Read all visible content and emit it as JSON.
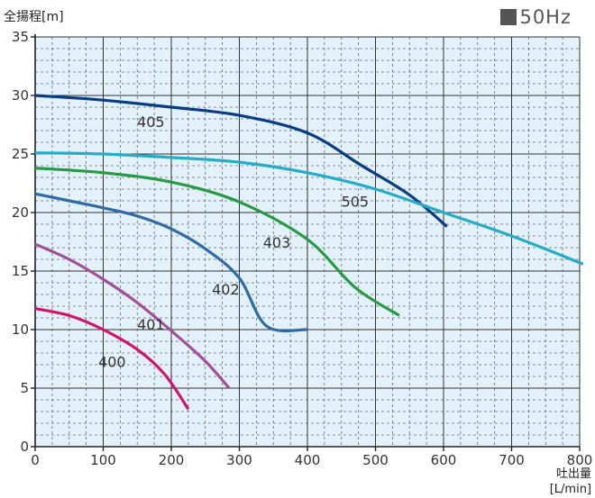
{
  "frequency_label": "50Hz",
  "chart_data": {
    "type": "line",
    "ylabel": "全揚程[m]",
    "xlabel_line1": "吐出量",
    "xlabel_line2": "[L/min]",
    "xlim": [
      0,
      800
    ],
    "ylim": [
      0,
      35
    ],
    "x_ticks": [
      0,
      100,
      200,
      300,
      400,
      500,
      600,
      700,
      800
    ],
    "y_ticks": [
      0,
      5,
      10,
      15,
      20,
      25,
      30,
      35
    ],
    "minor_x_step": 25,
    "minor_y_step": 1,
    "grid": true,
    "background": "#e3f1fa",
    "series": [
      {
        "name": "400",
        "color": "#d3136f",
        "points": [
          [
            0,
            11.8
          ],
          [
            50,
            11.2
          ],
          [
            100,
            10.0
          ],
          [
            150,
            8.3
          ],
          [
            190,
            6.2
          ],
          [
            225,
            3.2
          ]
        ],
        "label_pos": [
          113,
          6.8
        ]
      },
      {
        "name": "401",
        "color": "#a24f9a",
        "points": [
          [
            0,
            17.3
          ],
          [
            50,
            16.0
          ],
          [
            100,
            14.3
          ],
          [
            150,
            12.3
          ],
          [
            200,
            9.9
          ],
          [
            250,
            7.3
          ],
          [
            285,
            5.0
          ]
        ],
        "label_pos": [
          170,
          10.0
        ]
      },
      {
        "name": "402",
        "color": "#2f6ba4",
        "points": [
          [
            0,
            21.6
          ],
          [
            50,
            21.0
          ],
          [
            100,
            20.4
          ],
          [
            150,
            19.7
          ],
          [
            200,
            18.6
          ],
          [
            250,
            16.9
          ],
          [
            300,
            14.4
          ],
          [
            340,
            10.3
          ],
          [
            400,
            10.0
          ]
        ],
        "label_pos": [
          280,
          13.0
        ]
      },
      {
        "name": "403",
        "color": "#279a43",
        "points": [
          [
            0,
            23.8
          ],
          [
            100,
            23.4
          ],
          [
            200,
            22.6
          ],
          [
            300,
            20.9
          ],
          [
            400,
            17.7
          ],
          [
            470,
            13.6
          ],
          [
            535,
            11.2
          ]
        ],
        "label_pos": [
          355,
          17.0
        ]
      },
      {
        "name": "405",
        "color": "#083d86",
        "points": [
          [
            0,
            30.0
          ],
          [
            100,
            29.6
          ],
          [
            200,
            29.0
          ],
          [
            300,
            28.3
          ],
          [
            400,
            26.8
          ],
          [
            480,
            24.0
          ],
          [
            550,
            21.5
          ],
          [
            605,
            18.8
          ]
        ],
        "label_pos": [
          170,
          27.3
        ]
      },
      {
        "name": "505",
        "color": "#24adc8",
        "points": [
          [
            0,
            25.1
          ],
          [
            100,
            25.0
          ],
          [
            200,
            24.7
          ],
          [
            300,
            24.3
          ],
          [
            400,
            23.4
          ],
          [
            500,
            22.0
          ],
          [
            600,
            20.0
          ],
          [
            700,
            18.0
          ],
          [
            805,
            15.6
          ]
        ],
        "label_pos": [
          470,
          20.5
        ]
      }
    ]
  }
}
